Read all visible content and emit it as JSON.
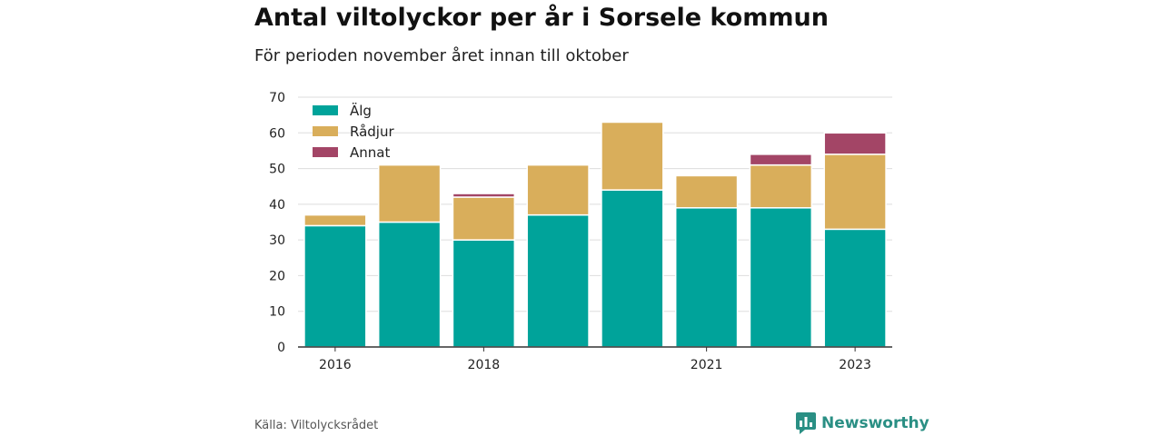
{
  "title": "Antal viltolyckor per år i Sorsele kommun",
  "subtitle": "För perioden november året innan till oktober",
  "source": "Källa: Viltolycksrådet",
  "brand": "Newsworthy",
  "chart_data": {
    "type": "bar",
    "stacked": true,
    "categories": [
      "2016",
      "2017",
      "2018",
      "2019",
      "2020",
      "2021",
      "2022",
      "2023"
    ],
    "x_tick_labels": [
      "2016",
      "",
      "2018",
      "",
      "",
      "2021",
      "",
      "2023"
    ],
    "series": [
      {
        "name": "Älg",
        "color": "#00a39a",
        "values": [
          34,
          35,
          30,
          37,
          44,
          39,
          39,
          33
        ]
      },
      {
        "name": "Rådjur",
        "color": "#d9ae5b",
        "values": [
          3,
          16,
          12,
          14,
          19,
          9,
          12,
          21
        ]
      },
      {
        "name": "Annat",
        "color": "#a34566",
        "values": [
          0,
          0,
          1,
          0,
          0,
          0,
          3,
          6
        ]
      }
    ],
    "ylim": [
      0,
      70
    ],
    "yticks": [
      0,
      10,
      20,
      30,
      40,
      50,
      60,
      70
    ],
    "grid": true,
    "legend_position": "top-left"
  }
}
